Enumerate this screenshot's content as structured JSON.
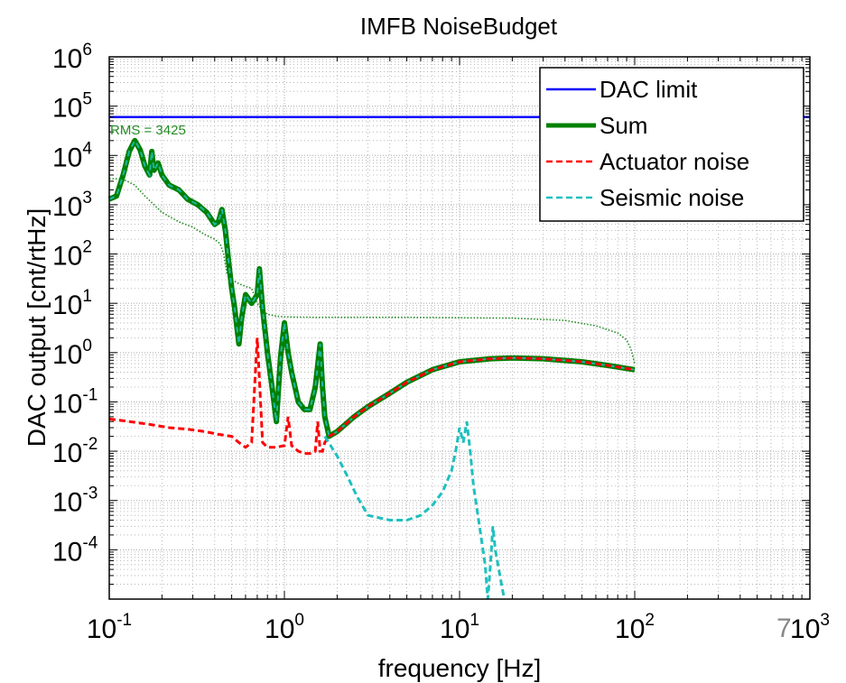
{
  "chart_data": {
    "type": "line",
    "title": "IMFB NoiseBudget",
    "xlabel": "frequency [Hz]",
    "ylabel": "DAC output [cnt/rtHz]",
    "x_scale": "log",
    "y_scale": "log",
    "xlim": [
      0.1,
      1000
    ],
    "ylim": [
      1e-05,
      1000000
    ],
    "x_ticks": [
      {
        "base": "10",
        "exp": "-1"
      },
      {
        "base": "10",
        "exp": "0"
      },
      {
        "base": "10",
        "exp": "1"
      },
      {
        "base": "10",
        "exp": "2"
      },
      {
        "base": "10",
        "exp": "3"
      }
    ],
    "y_ticks": [
      {
        "base": "10",
        "exp": "6"
      },
      {
        "base": "10",
        "exp": "5"
      },
      {
        "base": "10",
        "exp": "4"
      },
      {
        "base": "10",
        "exp": "3"
      },
      {
        "base": "10",
        "exp": "2"
      },
      {
        "base": "10",
        "exp": "1"
      },
      {
        "base": "10",
        "exp": "0"
      },
      {
        "base": "10",
        "exp": "-1"
      },
      {
        "base": "10",
        "exp": "-2"
      },
      {
        "base": "10",
        "exp": "-3"
      },
      {
        "base": "10",
        "exp": "-4"
      }
    ],
    "grid": "major and minor, dotted",
    "legend_position": "top-right",
    "annotation": "RMS = 3425",
    "stray_text": "7",
    "colors": {
      "dac_limit": "#0000ff",
      "sum": "#008000",
      "actuator": "#ff0000",
      "seismic": "#1fbfbf",
      "rms": "#228b22",
      "grid": "#a8a8a8"
    },
    "series": [
      {
        "name": "DAC limit",
        "style": "solid",
        "x": [
          0.1,
          1000
        ],
        "y": [
          60000,
          60000
        ]
      },
      {
        "name": "Sum",
        "style": "thick-solid",
        "x": [
          0.1,
          0.11,
          0.12,
          0.13,
          0.14,
          0.15,
          0.16,
          0.17,
          0.175,
          0.18,
          0.19,
          0.2,
          0.22,
          0.25,
          0.28,
          0.32,
          0.36,
          0.4,
          0.42,
          0.44,
          0.46,
          0.48,
          0.5,
          0.52,
          0.55,
          0.57,
          0.6,
          0.65,
          0.7,
          0.72,
          0.75,
          0.8,
          0.85,
          0.9,
          0.95,
          1.0,
          1.05,
          1.1,
          1.2,
          1.3,
          1.4,
          1.5,
          1.6,
          1.65,
          1.7,
          1.8,
          2,
          2.5,
          3,
          4,
          5,
          7,
          10,
          15,
          20,
          30,
          50,
          70,
          100
        ],
        "y": [
          1300,
          1500,
          4000,
          12000,
          20000,
          13000,
          6000,
          4000,
          12000,
          5000,
          7000,
          4000,
          2500,
          2000,
          1300,
          1000,
          700,
          400,
          450,
          800,
          300,
          70,
          20,
          8,
          1.5,
          5,
          15,
          10,
          15,
          50,
          8,
          1,
          0.2,
          0.04,
          0.8,
          4,
          1,
          0.4,
          0.1,
          0.07,
          0.07,
          0.2,
          1.5,
          0.2,
          0.05,
          0.02,
          0.025,
          0.05,
          0.08,
          0.15,
          0.25,
          0.45,
          0.65,
          0.75,
          0.78,
          0.75,
          0.65,
          0.55,
          0.45
        ]
      },
      {
        "name": "Actuator noise",
        "style": "dashed",
        "x": [
          0.1,
          0.13,
          0.17,
          0.22,
          0.28,
          0.35,
          0.42,
          0.5,
          0.55,
          0.6,
          0.65,
          0.68,
          0.7,
          0.72,
          0.75,
          0.8,
          0.9,
          1.0,
          1.05,
          1.1,
          1.2,
          1.3,
          1.4,
          1.5,
          1.55,
          1.6,
          1.65,
          1.7,
          1.8,
          2,
          2.5,
          3,
          4,
          5,
          7,
          10,
          15,
          20,
          30,
          50,
          70,
          100
        ],
        "y": [
          0.045,
          0.04,
          0.035,
          0.03,
          0.028,
          0.025,
          0.022,
          0.02,
          0.015,
          0.012,
          0.015,
          0.3,
          2,
          0.3,
          0.015,
          0.012,
          0.012,
          0.013,
          0.05,
          0.013,
          0.01,
          0.009,
          0.009,
          0.01,
          0.04,
          0.01,
          0.01,
          0.015,
          0.02,
          0.025,
          0.05,
          0.08,
          0.15,
          0.25,
          0.45,
          0.65,
          0.75,
          0.78,
          0.75,
          0.65,
          0.55,
          0.45
        ]
      },
      {
        "name": "Seismic noise",
        "style": "dashed",
        "x": [
          1.7,
          2,
          2.3,
          2.6,
          3,
          4,
          5,
          6,
          7,
          8,
          9,
          9.5,
          10,
          10.5,
          11,
          11.5,
          12,
          13,
          14,
          14.5,
          15,
          15.5,
          16,
          17,
          18
        ],
        "y": [
          0.02,
          0.008,
          0.003,
          0.0012,
          0.0005,
          0.0004,
          0.0004,
          0.0005,
          0.0008,
          0.0015,
          0.004,
          0.01,
          0.03,
          0.015,
          0.04,
          0.01,
          0.002,
          0.0003,
          5e-05,
          8e-06,
          5e-05,
          0.0003,
          0.0001,
          3e-05,
          8e-06
        ]
      },
      {
        "name": "",
        "style": "dotted",
        "x": [
          0.1,
          0.12,
          0.14,
          0.16,
          0.2,
          0.25,
          0.3,
          0.35,
          0.4,
          0.43,
          0.45,
          0.47,
          0.5,
          0.55,
          0.6,
          0.65,
          0.7,
          0.75,
          0.8,
          0.9,
          1,
          1.5,
          2,
          5,
          10,
          20,
          40,
          60,
          80,
          90,
          95,
          100
        ],
        "y": [
          3400,
          3300,
          2500,
          1500,
          700,
          450,
          350,
          250,
          200,
          160,
          100,
          40,
          30,
          25,
          22,
          20,
          10,
          7,
          6,
          5.5,
          5.3,
          5.2,
          5.2,
          5.2,
          5.1,
          5,
          4.5,
          3.5,
          2.5,
          1.8,
          1.2,
          0.6
        ]
      }
    ]
  }
}
